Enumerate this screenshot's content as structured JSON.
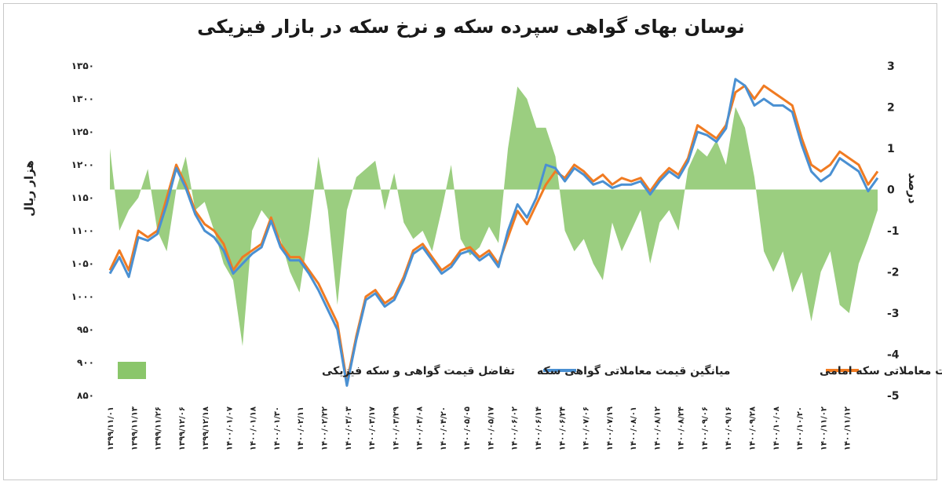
{
  "chart_data": {
    "type": "line",
    "title": "نوسان بهای گواهی سپرده سکه و نرخ سکه در بازار فیزیکی",
    "ylabel": "هزار ریال",
    "y2label": "درصد",
    "ylim": [
      850,
      1350
    ],
    "y2lim": [
      -5,
      3
    ],
    "y_ticks": [
      "۱۳۵۰",
      "۱۳۰۰",
      "۱۲۵۰",
      "۱۲۰۰",
      "۱۱۵۰",
      "۱۱۰۰",
      "۱۰۵۰",
      "۱۰۰۰",
      "۹۵۰",
      "۹۰۰",
      "۸۵۰"
    ],
    "y2_ticks": [
      "3",
      "2",
      "1",
      "0",
      "-1",
      "-2",
      "-3",
      "-4",
      "-5"
    ],
    "x_labels": [
      "۱۳۹۹/۱۱/۰۱",
      "۱۳۹۹/۱۱/۱۳",
      "۱۳۹۹/۱۱/۲۶",
      "۱۳۹۹/۱۲/۰۶",
      "۱۳۹۹/۱۲/۱۸",
      "۱۴۰۰/۰۱/۰۷",
      "۱۴۰۰/۰۱/۱۸",
      "۱۴۰۰/۰۱/۳۰",
      "۱۴۰۰/۰۲/۱۱",
      "۱۴۰۰/۰۲/۲۲",
      "۱۴۰۰/۰۳/۰۳",
      "۱۴۰۰/۰۳/۱۷",
      "۱۴۰۰/۰۳/۲۹",
      "۱۴۰۰/۰۴/۰۸",
      "۱۴۰۰/۰۴/۲۰",
      "۱۴۰۰/۰۵/۰۵",
      "۱۴۰۰/۰۵/۱۷",
      "۱۴۰۰/۰۶/۰۲",
      "۱۴۰۰/۰۶/۱۴",
      "۱۴۰۰/۰۶/۲۴",
      "۱۴۰۰/۰۷/۰۶",
      "۱۴۰۰/۰۷/۱۹",
      "۱۴۰۰/۰۸/۰۱",
      "۱۴۰۰/۰۸/۱۲",
      "۱۴۰۰/۰۸/۲۴",
      "۱۴۰۰/۰۹/۰۶",
      "۱۴۰۰/۰۹/۱۶",
      "۱۴۰۰/۰۹/۲۸",
      "۱۴۰۰/۱۰/۰۸",
      "۱۴۰۰/۱۰/۲۰",
      "۱۴۰۰/۱۱/۰۲",
      "۱۴۰۰/۱۱/۱۲"
    ],
    "series": [
      {
        "name": "یک صدم قیمت معاملاتی سکه امامی",
        "axis": "left",
        "kind": "line",
        "color": "#f07b22",
        "values": [
          1040,
          1070,
          1040,
          1100,
          1090,
          1100,
          1150,
          1200,
          1170,
          1130,
          1110,
          1100,
          1080,
          1040,
          1060,
          1070,
          1080,
          1120,
          1080,
          1060,
          1060,
          1040,
          1020,
          990,
          960,
          870,
          940,
          1000,
          1010,
          990,
          1000,
          1030,
          1070,
          1080,
          1060,
          1040,
          1050,
          1070,
          1075,
          1060,
          1070,
          1050,
          1090,
          1130,
          1110,
          1140,
          1170,
          1190,
          1180,
          1200,
          1190,
          1175,
          1185,
          1170,
          1180,
          1175,
          1180,
          1160,
          1180,
          1195,
          1185,
          1210,
          1260,
          1250,
          1240,
          1260,
          1310,
          1320,
          1300,
          1320,
          1310,
          1300,
          1290,
          1240,
          1200,
          1190,
          1200,
          1220,
          1210,
          1200,
          1170,
          1190
        ]
      },
      {
        "name": "میانگین قیمت معاملاتی گواهی سکه",
        "axis": "left",
        "kind": "line",
        "color": "#4a90d2",
        "values": [
          1035,
          1060,
          1030,
          1090,
          1085,
          1095,
          1140,
          1195,
          1165,
          1125,
          1100,
          1090,
          1070,
          1035,
          1050,
          1065,
          1075,
          1115,
          1075,
          1055,
          1055,
          1035,
          1010,
          980,
          950,
          865,
          935,
          995,
          1005,
          985,
          995,
          1025,
          1065,
          1075,
          1055,
          1035,
          1045,
          1065,
          1070,
          1055,
          1065,
          1045,
          1100,
          1140,
          1120,
          1150,
          1200,
          1195,
          1175,
          1195,
          1185,
          1170,
          1175,
          1165,
          1170,
          1170,
          1175,
          1155,
          1175,
          1190,
          1180,
          1205,
          1250,
          1245,
          1235,
          1255,
          1330,
          1320,
          1290,
          1300,
          1290,
          1290,
          1280,
          1230,
          1190,
          1175,
          1185,
          1210,
          1200,
          1190,
          1160,
          1180
        ]
      },
      {
        "name": "تفاضل قیمت گواهی و سکه فیزیکی",
        "axis": "right",
        "kind": "area",
        "color": "#8ac66a",
        "values": [
          1.0,
          -1.0,
          -0.5,
          -0.2,
          0.5,
          -1.0,
          -1.5,
          0.0,
          0.8,
          -0.5,
          -0.3,
          -1.0,
          -1.8,
          -2.2,
          -3.8,
          -1.0,
          -0.5,
          -0.8,
          -1.2,
          -2.0,
          -2.5,
          -1.0,
          0.8,
          -0.5,
          -2.8,
          -0.5,
          0.3,
          0.5,
          0.7,
          -0.5,
          0.4,
          -0.8,
          -1.2,
          -1.0,
          -1.5,
          -0.5,
          0.6,
          -1.2,
          -1.6,
          -1.4,
          -0.9,
          -1.3,
          1.0,
          2.5,
          2.2,
          1.5,
          1.5,
          0.8,
          -1.0,
          -1.5,
          -1.2,
          -1.8,
          -2.2,
          -0.8,
          -1.5,
          -1.0,
          -0.5,
          -1.8,
          -0.8,
          -0.5,
          -1.0,
          0.5,
          1.0,
          0.8,
          1.2,
          0.6,
          2.0,
          1.5,
          0.3,
          -1.5,
          -2.0,
          -1.5,
          -2.5,
          -2.0,
          -3.2,
          -2.0,
          -1.5,
          -2.8,
          -3.0,
          -1.8,
          -1.2,
          -0.5
        ]
      }
    ],
    "legend": [
      {
        "label": "یک صدم قیمت معاملاتی سکه امامی",
        "color": "#f07b22",
        "type": "line"
      },
      {
        "label": "میانگین قیمت معاملاتی گواهی سکه",
        "color": "#4a90d2",
        "type": "line"
      },
      {
        "label": "تفاضل قیمت گواهی و سکه فیزیکی",
        "color": "#8ac66a",
        "type": "area"
      }
    ],
    "legend_position": "bottom",
    "grid": false
  }
}
